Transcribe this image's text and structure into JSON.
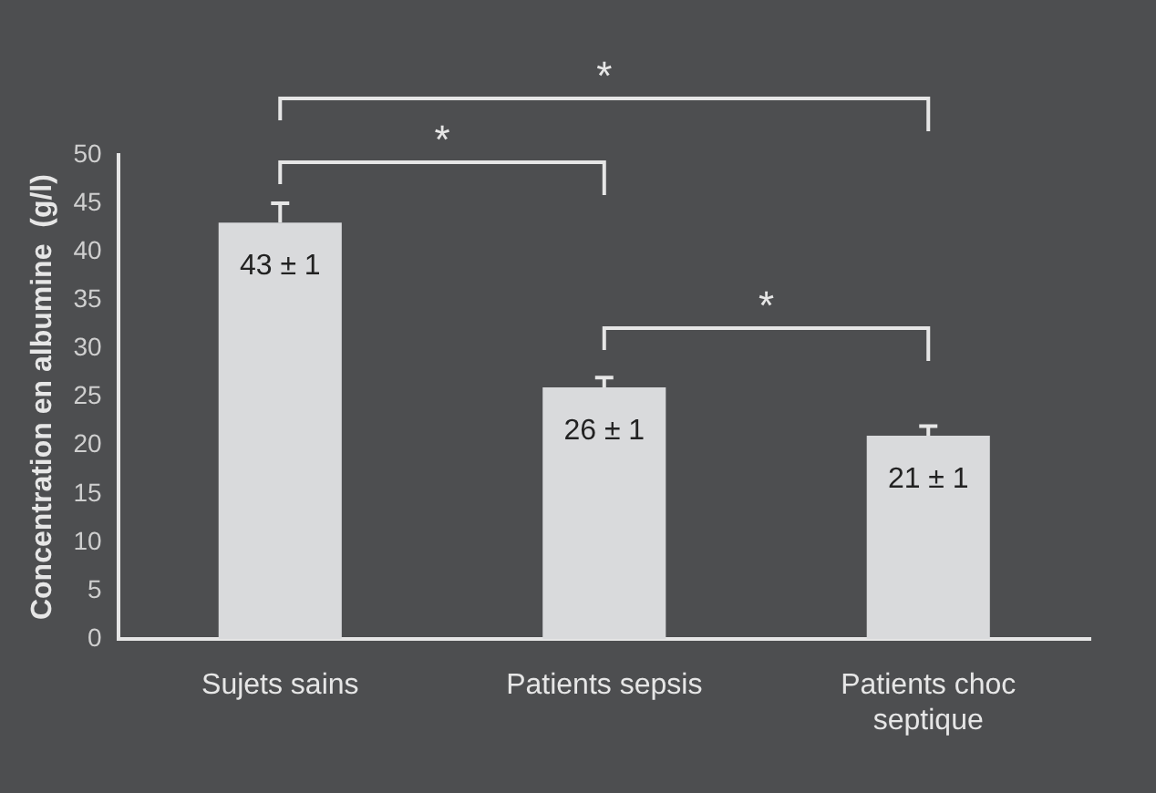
{
  "chart_data": {
    "type": "bar",
    "ylabel": "Concentration en albumine  (g/l)",
    "categories": [
      "Sujets sains",
      "Patients sepsis",
      "Patients choc septique"
    ],
    "values": [
      43,
      26,
      21
    ],
    "color": "#d9dadc",
    "errors": [
      [
        43,
        45
      ],
      [
        26,
        27
      ],
      [
        21,
        22
      ]
    ],
    "value_labels": [
      "43 ± 1",
      "26 ± 1",
      "21 ± 1"
    ],
    "annotations": [
      "*",
      "*",
      "*"
    ],
    "ylim": [
      0,
      50
    ],
    "yticks": [
      0,
      5,
      10,
      15,
      20,
      25,
      30,
      35,
      40,
      45,
      50
    ],
    "grid": false,
    "legend": false
  }
}
